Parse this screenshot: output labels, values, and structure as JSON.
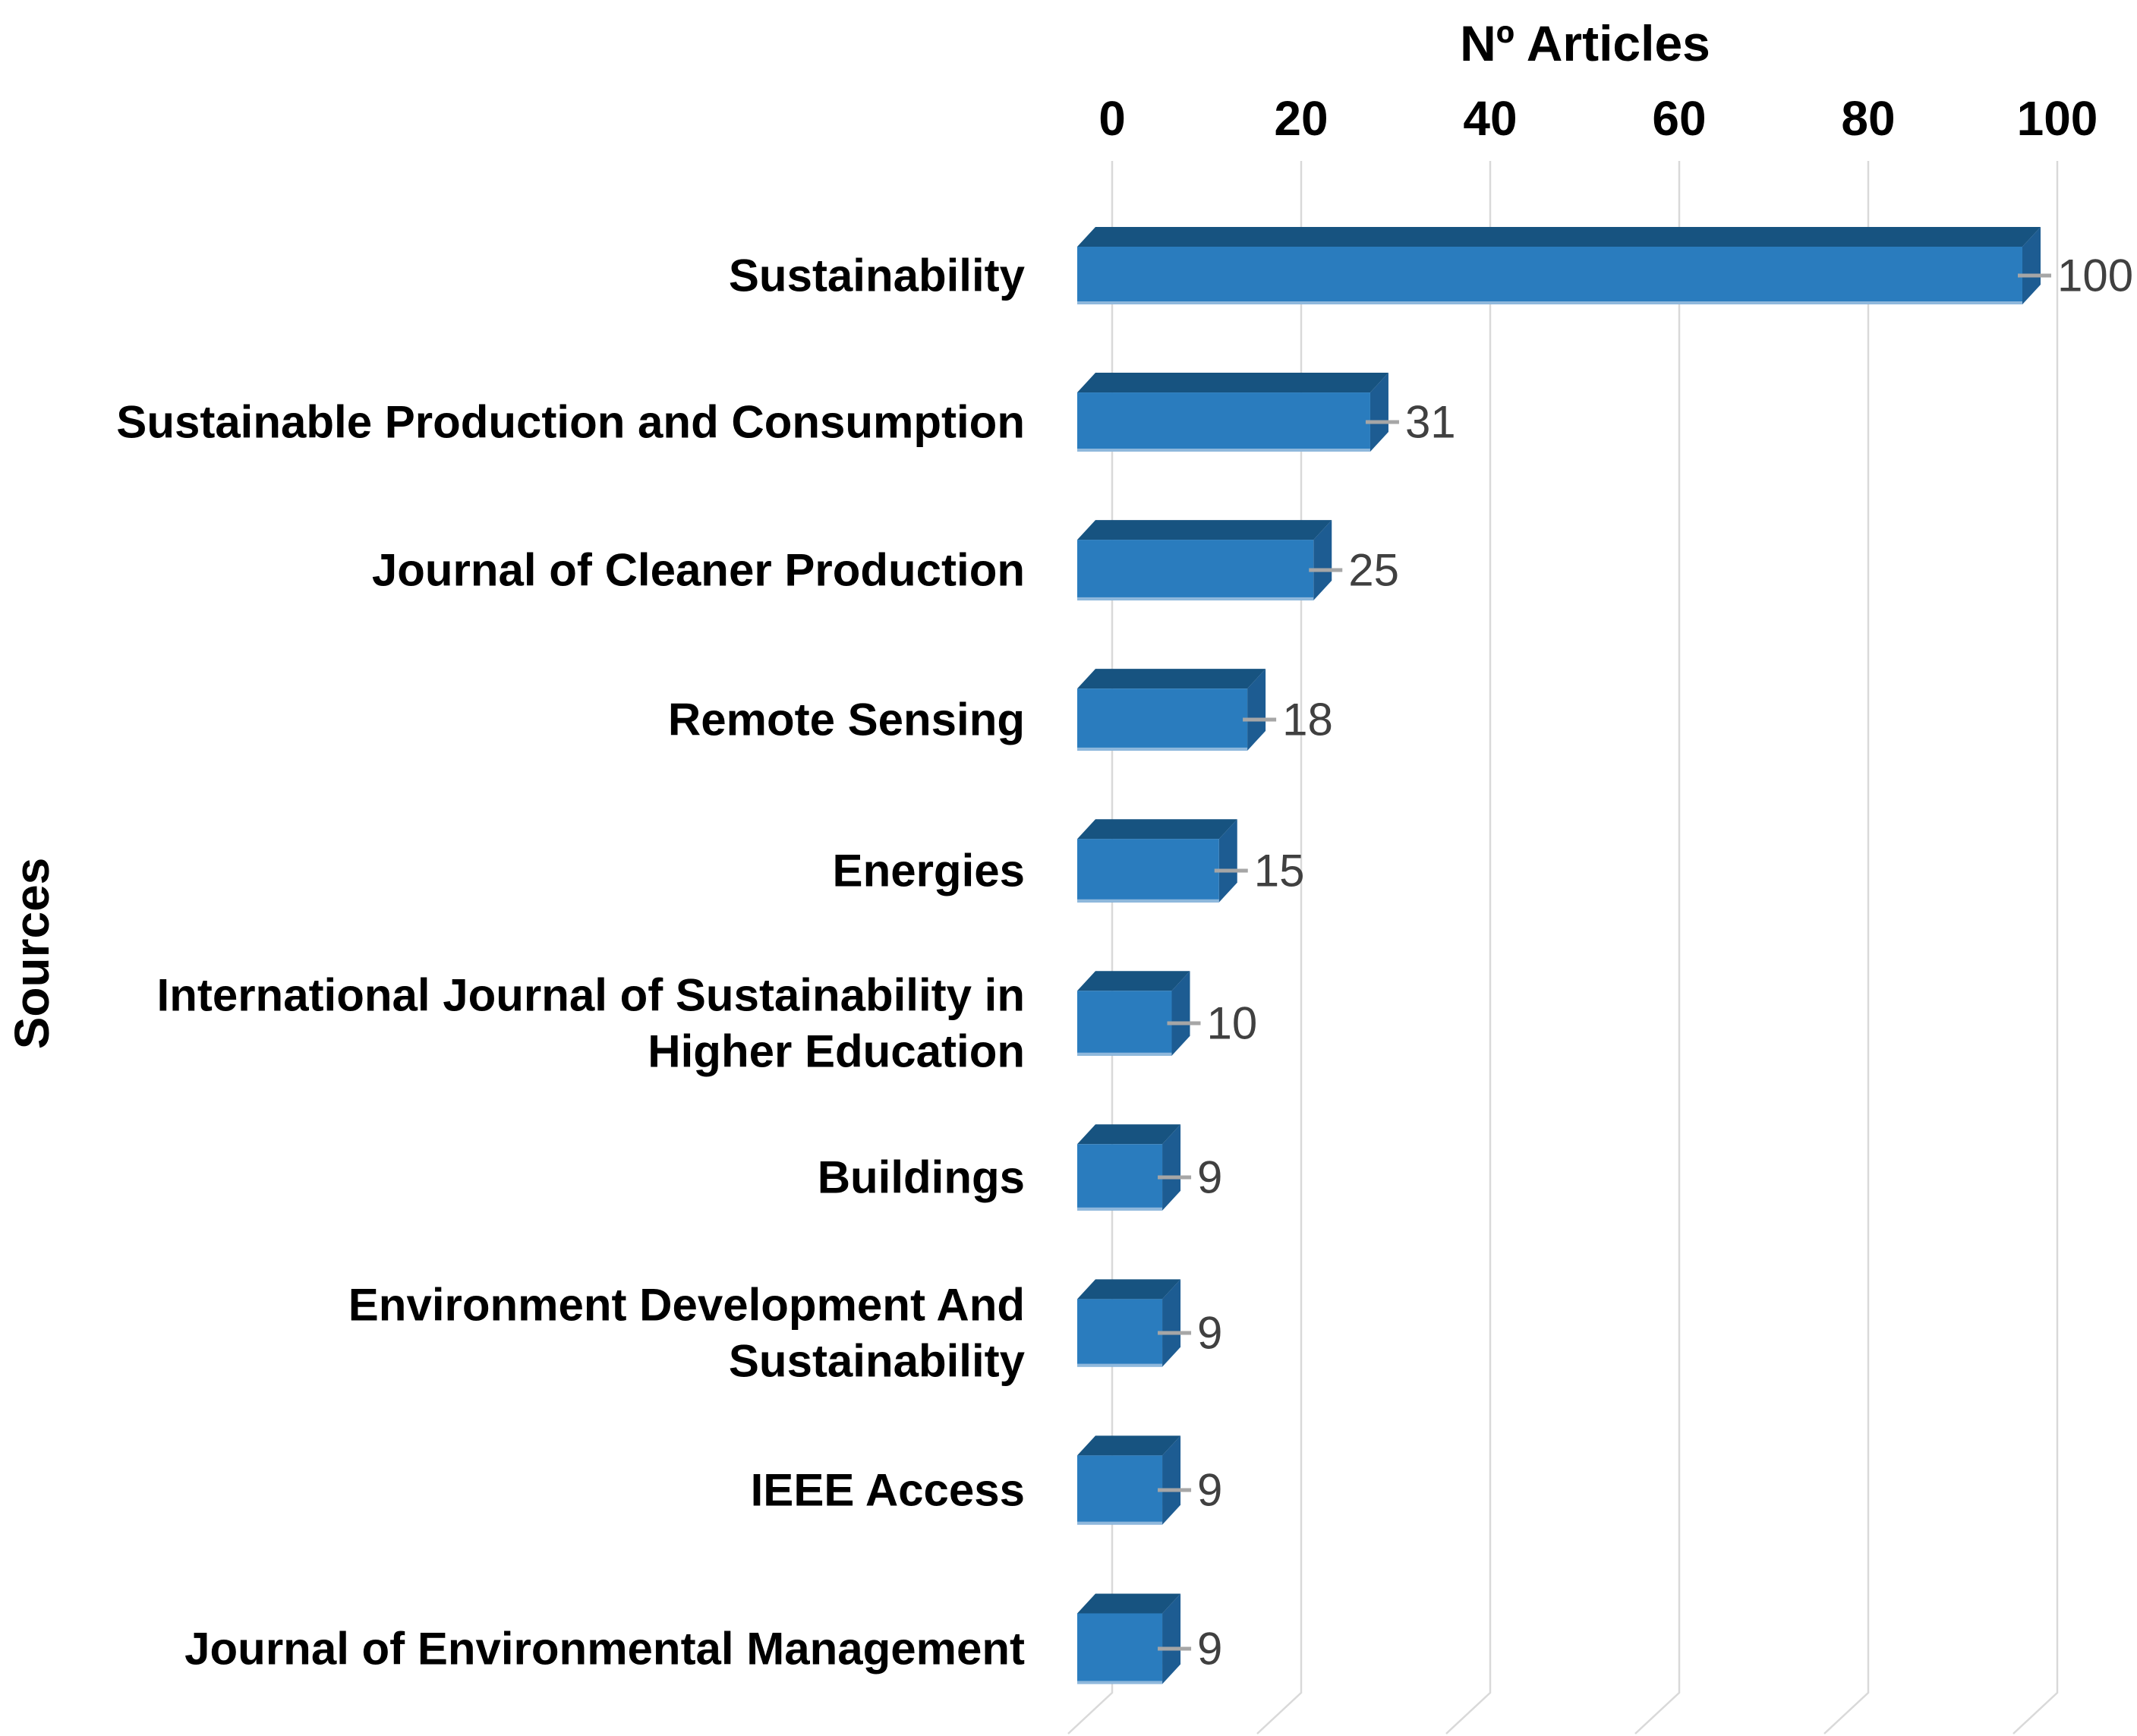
{
  "figure": {
    "background": "#FFFFFF"
  },
  "chart_data": {
    "type": "bar",
    "orientation": "horizontal",
    "style": "3d",
    "title": "Nº Articles",
    "xlabel": "Nº Articles",
    "ylabel": "Sources",
    "xlim": [
      0,
      100
    ],
    "xticks": [
      "0",
      "20",
      "40",
      "60",
      "80",
      "100"
    ],
    "grid": true,
    "legend": false,
    "categories": [
      "Sustainability",
      "Sustainable Production and Consumption",
      "Journal of Cleaner Production",
      "Remote Sensing",
      "Energies",
      "International Journal of Sustainability in Higher Education",
      "Buildings",
      "Environment Development And Sustainability",
      "IEEE Access",
      "Journal of Environmental Management"
    ],
    "category_display_lines": [
      [
        "Sustainability"
      ],
      [
        "Sustainable Production and Consumption"
      ],
      [
        "Journal of Cleaner Production"
      ],
      [
        "Remote Sensing"
      ],
      [
        "Energies"
      ],
      [
        "International Journal of Sustainability in",
        "Higher Education"
      ],
      [
        "Buildings"
      ],
      [
        "Environment Development And",
        "Sustainability"
      ],
      [
        "IEEE Access"
      ],
      [
        "Journal of Environmental Management"
      ]
    ],
    "values": [
      100,
      31,
      25,
      18,
      15,
      10,
      9,
      9,
      9,
      9
    ],
    "value_labels": [
      "100",
      "31",
      "25",
      "18",
      "15",
      "10",
      "9",
      "9",
      "9",
      "9"
    ],
    "colors": {
      "bar_front": "#2A7CBE",
      "bar_top": "#175380",
      "bar_side": "#1D5C92",
      "bar_bottom_edge": "#8FB8DC",
      "gridline": "#D9D9D9",
      "leader_line": "#A6A6A6",
      "value_text": "#404040",
      "axis_text": "#000000",
      "background": "#FFFFFF"
    }
  }
}
